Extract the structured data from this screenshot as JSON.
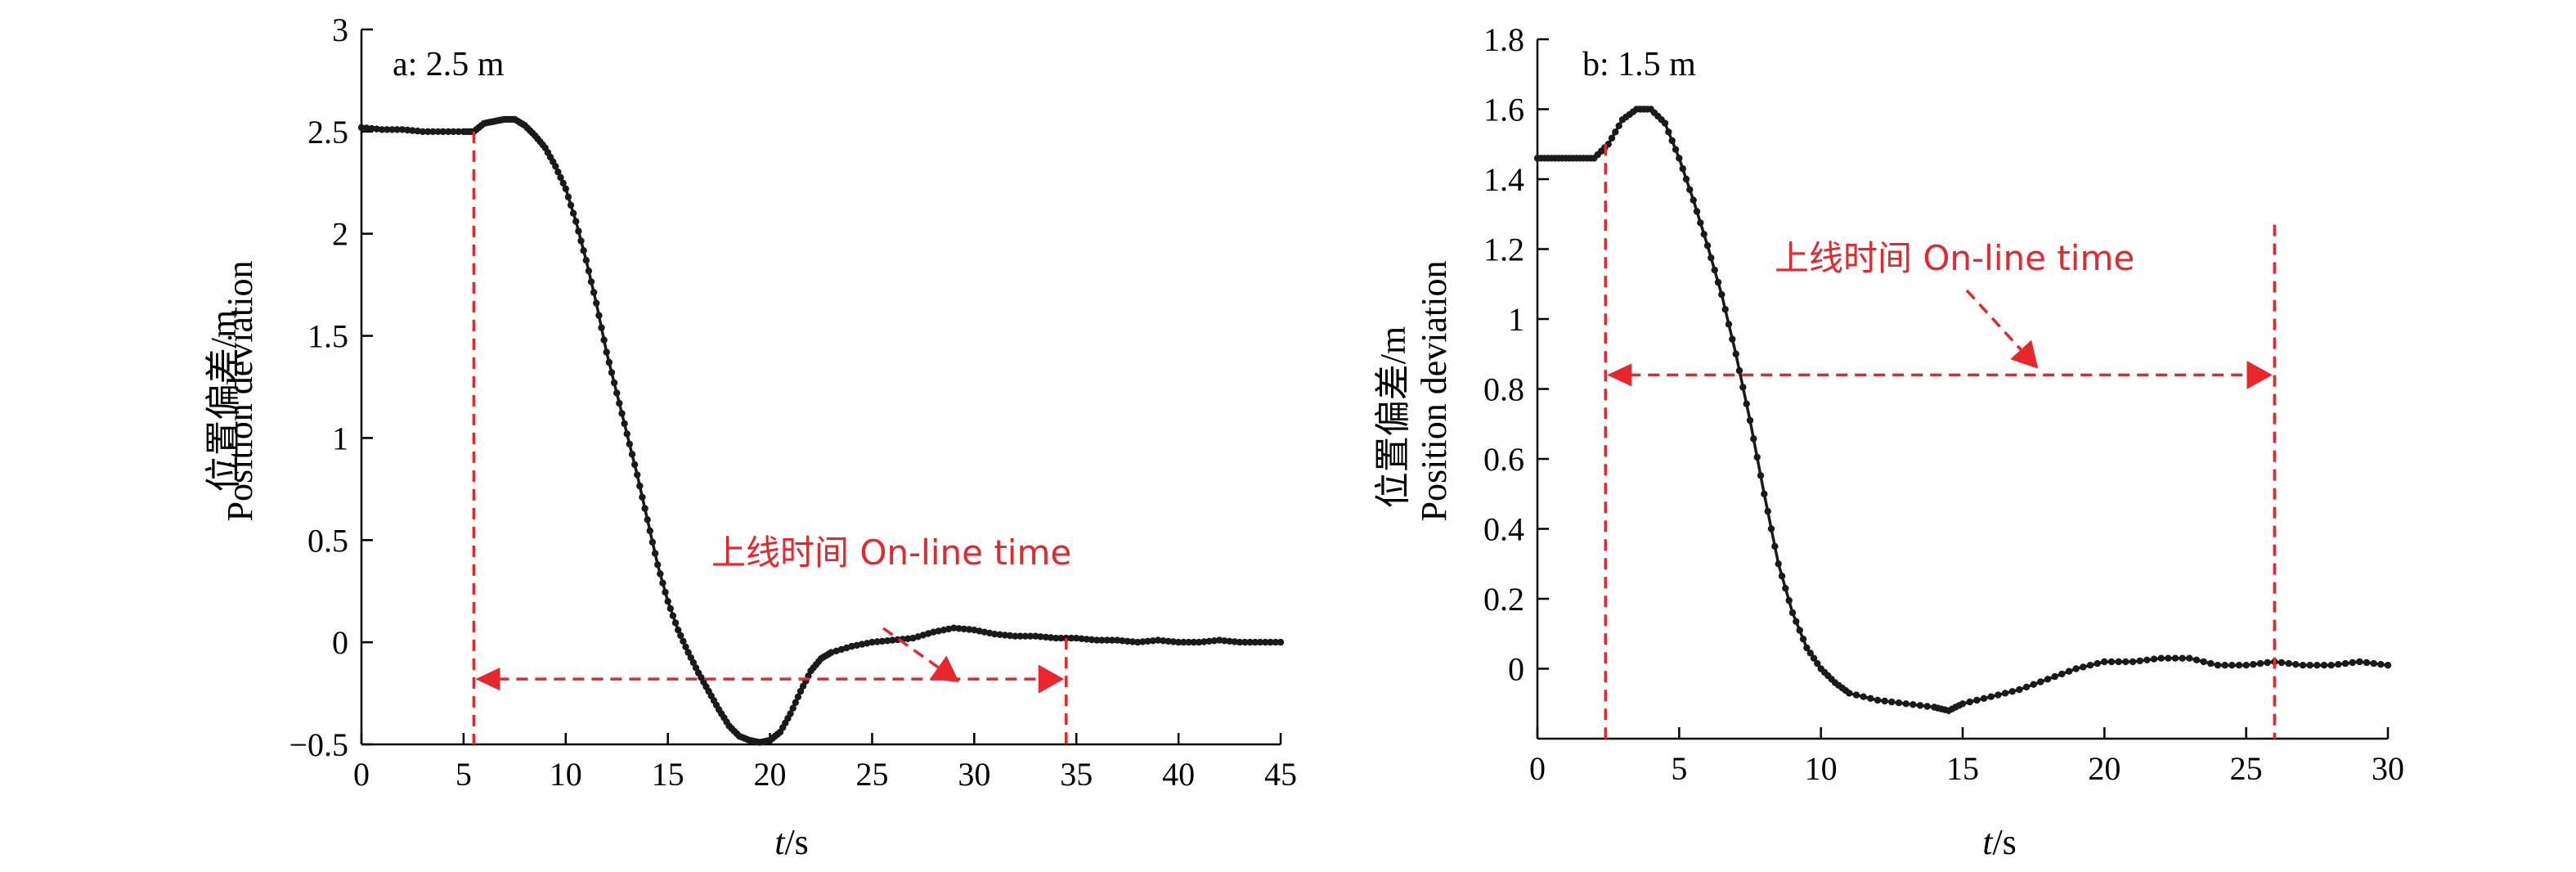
{
  "chart_data": [
    {
      "type": "line",
      "panel_label": "a: 2.5 m",
      "xlabel_italic": "t",
      "xlabel_unit": "/s",
      "ylabel_cn": "位置偏差/m",
      "ylabel_en": "Position deviation",
      "xlim": [
        0,
        45
      ],
      "ylim": [
        -0.5,
        3
      ],
      "xticks": [
        0,
        5,
        10,
        15,
        20,
        25,
        30,
        35,
        40,
        45
      ],
      "yticks": [
        -0.5,
        0,
        0.5,
        1,
        1.5,
        2,
        2.5,
        3
      ],
      "ytick_labels": [
        "−0.5",
        "0",
        "0.5",
        "1",
        "1.5",
        "2",
        "2.5",
        "3"
      ],
      "series": [
        {
          "x": [
            0,
            1,
            2,
            3,
            4,
            5,
            5.5,
            6,
            6.5,
            7,
            7.5,
            8,
            8.5,
            9,
            9.5,
            10,
            10.5,
            11,
            11.5,
            12,
            12.5,
            13,
            13.5,
            14,
            14.5,
            15,
            15.5,
            16,
            16.5,
            17,
            17.5,
            18,
            18.5,
            19,
            19.5,
            20,
            20.5,
            21,
            21.5,
            22,
            22.5,
            23,
            24,
            25,
            26,
            27,
            28,
            29,
            30,
            31,
            32,
            33,
            34,
            35,
            36,
            37,
            38,
            39,
            40,
            41,
            42,
            43,
            44,
            45
          ],
          "y": [
            2.52,
            2.51,
            2.51,
            2.5,
            2.5,
            2.5,
            2.5,
            2.54,
            2.55,
            2.56,
            2.56,
            2.53,
            2.48,
            2.42,
            2.33,
            2.22,
            2.06,
            1.87,
            1.66,
            1.42,
            1.22,
            1.02,
            0.82,
            0.6,
            0.38,
            0.2,
            0.06,
            -0.05,
            -0.15,
            -0.24,
            -0.33,
            -0.41,
            -0.46,
            -0.48,
            -0.49,
            -0.48,
            -0.44,
            -0.35,
            -0.24,
            -0.14,
            -0.08,
            -0.05,
            -0.02,
            0.0,
            0.01,
            0.02,
            0.05,
            0.07,
            0.06,
            0.04,
            0.03,
            0.03,
            0.02,
            0.02,
            0.01,
            0.01,
            0.0,
            0.01,
            0.0,
            0.0,
            0.01,
            0.0,
            0.0,
            0.0
          ]
        }
      ],
      "annotation": {
        "text": "上线时间 On-line time",
        "start_x": 5.5,
        "end_x": 34.5,
        "arrow_y": -0.18
      }
    },
    {
      "type": "line",
      "panel_label": "b: 1.5 m",
      "xlabel_italic": "t",
      "xlabel_unit": "/s",
      "ylabel_cn": "位置偏差/m",
      "ylabel_en": "Position deviation",
      "xlim": [
        0,
        30
      ],
      "ylim": [
        -0.2,
        1.8
      ],
      "xticks": [
        0,
        5,
        10,
        15,
        20,
        25,
        30
      ],
      "yticks": [
        0,
        0.2,
        0.4,
        0.6,
        0.8,
        1,
        1.2,
        1.4,
        1.6,
        1.8
      ],
      "ytick_labels": [
        "0",
        "0.2",
        "0.4",
        "0.6",
        "0.8",
        "1",
        "1.2",
        "1.4",
        "1.6",
        "1.8"
      ],
      "series": [
        {
          "x": [
            0,
            0.5,
            1,
            1.5,
            2,
            2.5,
            3,
            3.5,
            4,
            4.5,
            5,
            5.5,
            6,
            6.5,
            7,
            7.5,
            8,
            8.5,
            9,
            9.5,
            10,
            10.5,
            11,
            12,
            13,
            14,
            14.5,
            15,
            16,
            17,
            18,
            19,
            20,
            21,
            22,
            23,
            24,
            25,
            26,
            27,
            28,
            29,
            30
          ],
          "y": [
            1.46,
            1.46,
            1.46,
            1.46,
            1.46,
            1.5,
            1.57,
            1.6,
            1.6,
            1.56,
            1.46,
            1.34,
            1.21,
            1.07,
            0.9,
            0.71,
            0.5,
            0.3,
            0.16,
            0.06,
            0.0,
            -0.04,
            -0.07,
            -0.09,
            -0.1,
            -0.11,
            -0.12,
            -0.1,
            -0.08,
            -0.06,
            -0.03,
            0.0,
            0.02,
            0.02,
            0.03,
            0.03,
            0.01,
            0.01,
            0.02,
            0.01,
            0.01,
            0.02,
            0.01
          ]
        }
      ],
      "annotation": {
        "text": "上线时间 On-line time",
        "start_x": 2.4,
        "end_x": 26,
        "arrow_y": 0.84
      }
    }
  ]
}
